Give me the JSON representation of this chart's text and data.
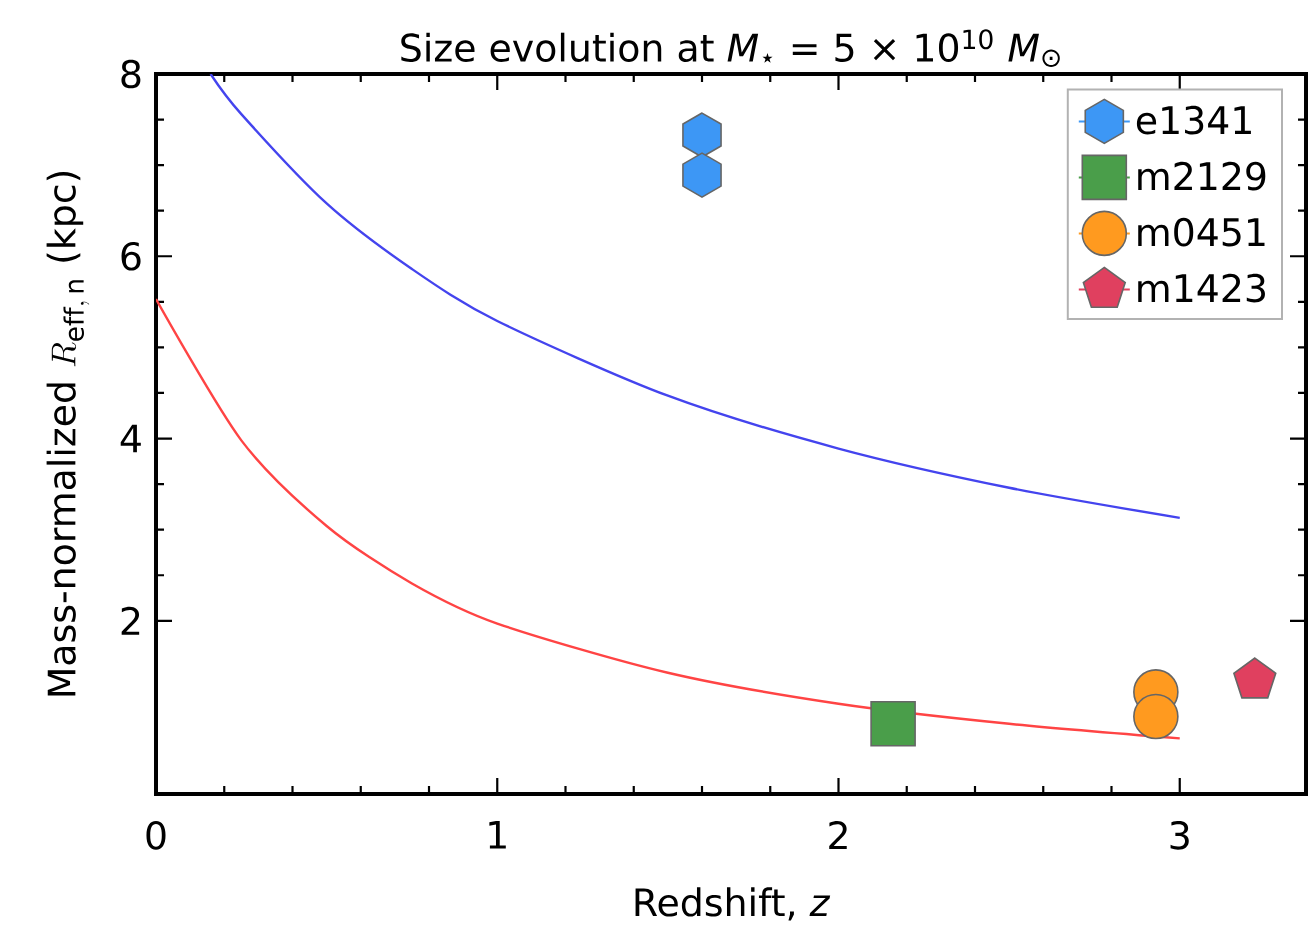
{
  "chart_data": {
    "type": "scatter",
    "title": "Size evolution at *M*$_{⋆}$ = 5 × 10$^{10}$ *M*$_{⊙}$",
    "xlabel": "Redshift, *z*",
    "ylabel": "\\text{Mass-normalized }R_{\\mathrm{eff,\\,n}}\\text{ (kpc)}",
    "xlim": [
      0,
      3.37
    ],
    "ylim": [
      0.1,
      8
    ],
    "xticks": [
      0,
      1,
      2,
      3
    ],
    "yticks": [
      2,
      4,
      6,
      8
    ],
    "grid": false,
    "legend": "top right",
    "series": [
      {
        "type": "line",
        "color": "#4444ee",
        "marker": "none",
        "x": [
          0.16,
          0.25,
          0.5,
          0.75,
          1,
          1.5,
          2,
          2.5,
          3
        ],
        "values": [
          8.0,
          7.56,
          6.58,
          5.86,
          5.29,
          4.47,
          3.89,
          3.46,
          3.13
        ]
      },
      {
        "type": "line",
        "color": "#ff4444",
        "marker": "none",
        "x": [
          0,
          0.25,
          0.5,
          0.75,
          1,
          1.5,
          2,
          2.5,
          3
        ],
        "values": [
          5.53,
          3.98,
          3.04,
          2.41,
          1.97,
          1.43,
          1.09,
          0.87,
          0.71
        ]
      },
      {
        "name": "e1341",
        "color": "#3d97f5",
        "x": [
          1.6,
          1.6
        ],
        "values": [
          7.33,
          6.89
        ]
      },
      {
        "name": "m2129",
        "color": "#4a9e4a",
        "marker": "square",
        "x": [
          2.16
        ],
        "values": [
          0.87
        ]
      },
      {
        "name": "m0451",
        "color": "#ff9a1f",
        "marker": "circle",
        "x": [
          2.93,
          2.93
        ],
        "values": [
          1.22,
          0.95
        ]
      },
      {
        "name": "m1423",
        "color": "#e0405f",
        "x": [
          3.22
        ],
        "values": [
          1.35
        ]
      }
    ]
  }
}
